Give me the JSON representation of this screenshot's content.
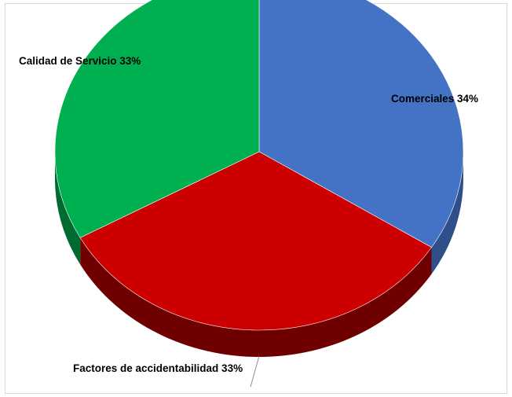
{
  "chart_data": {
    "type": "pie",
    "style": "3d",
    "title": "",
    "slices": [
      {
        "label": "Comerciales 34%",
        "category": "Comerciales",
        "value": 34,
        "color": "#4472C4",
        "side_color": "#2F4F8A"
      },
      {
        "label": "Factores de accidentabilidad 33%",
        "category": "Factores de accidentabilidad",
        "value": 33,
        "color": "#CC0000",
        "side_color": "#6E0000"
      },
      {
        "label": "Calidad de Servicio 33%",
        "category": "Calidad de Servicio",
        "value": 33,
        "color": "#00B050",
        "side_color": "#006B30"
      }
    ],
    "legend": "none",
    "data_labels": "outside"
  }
}
